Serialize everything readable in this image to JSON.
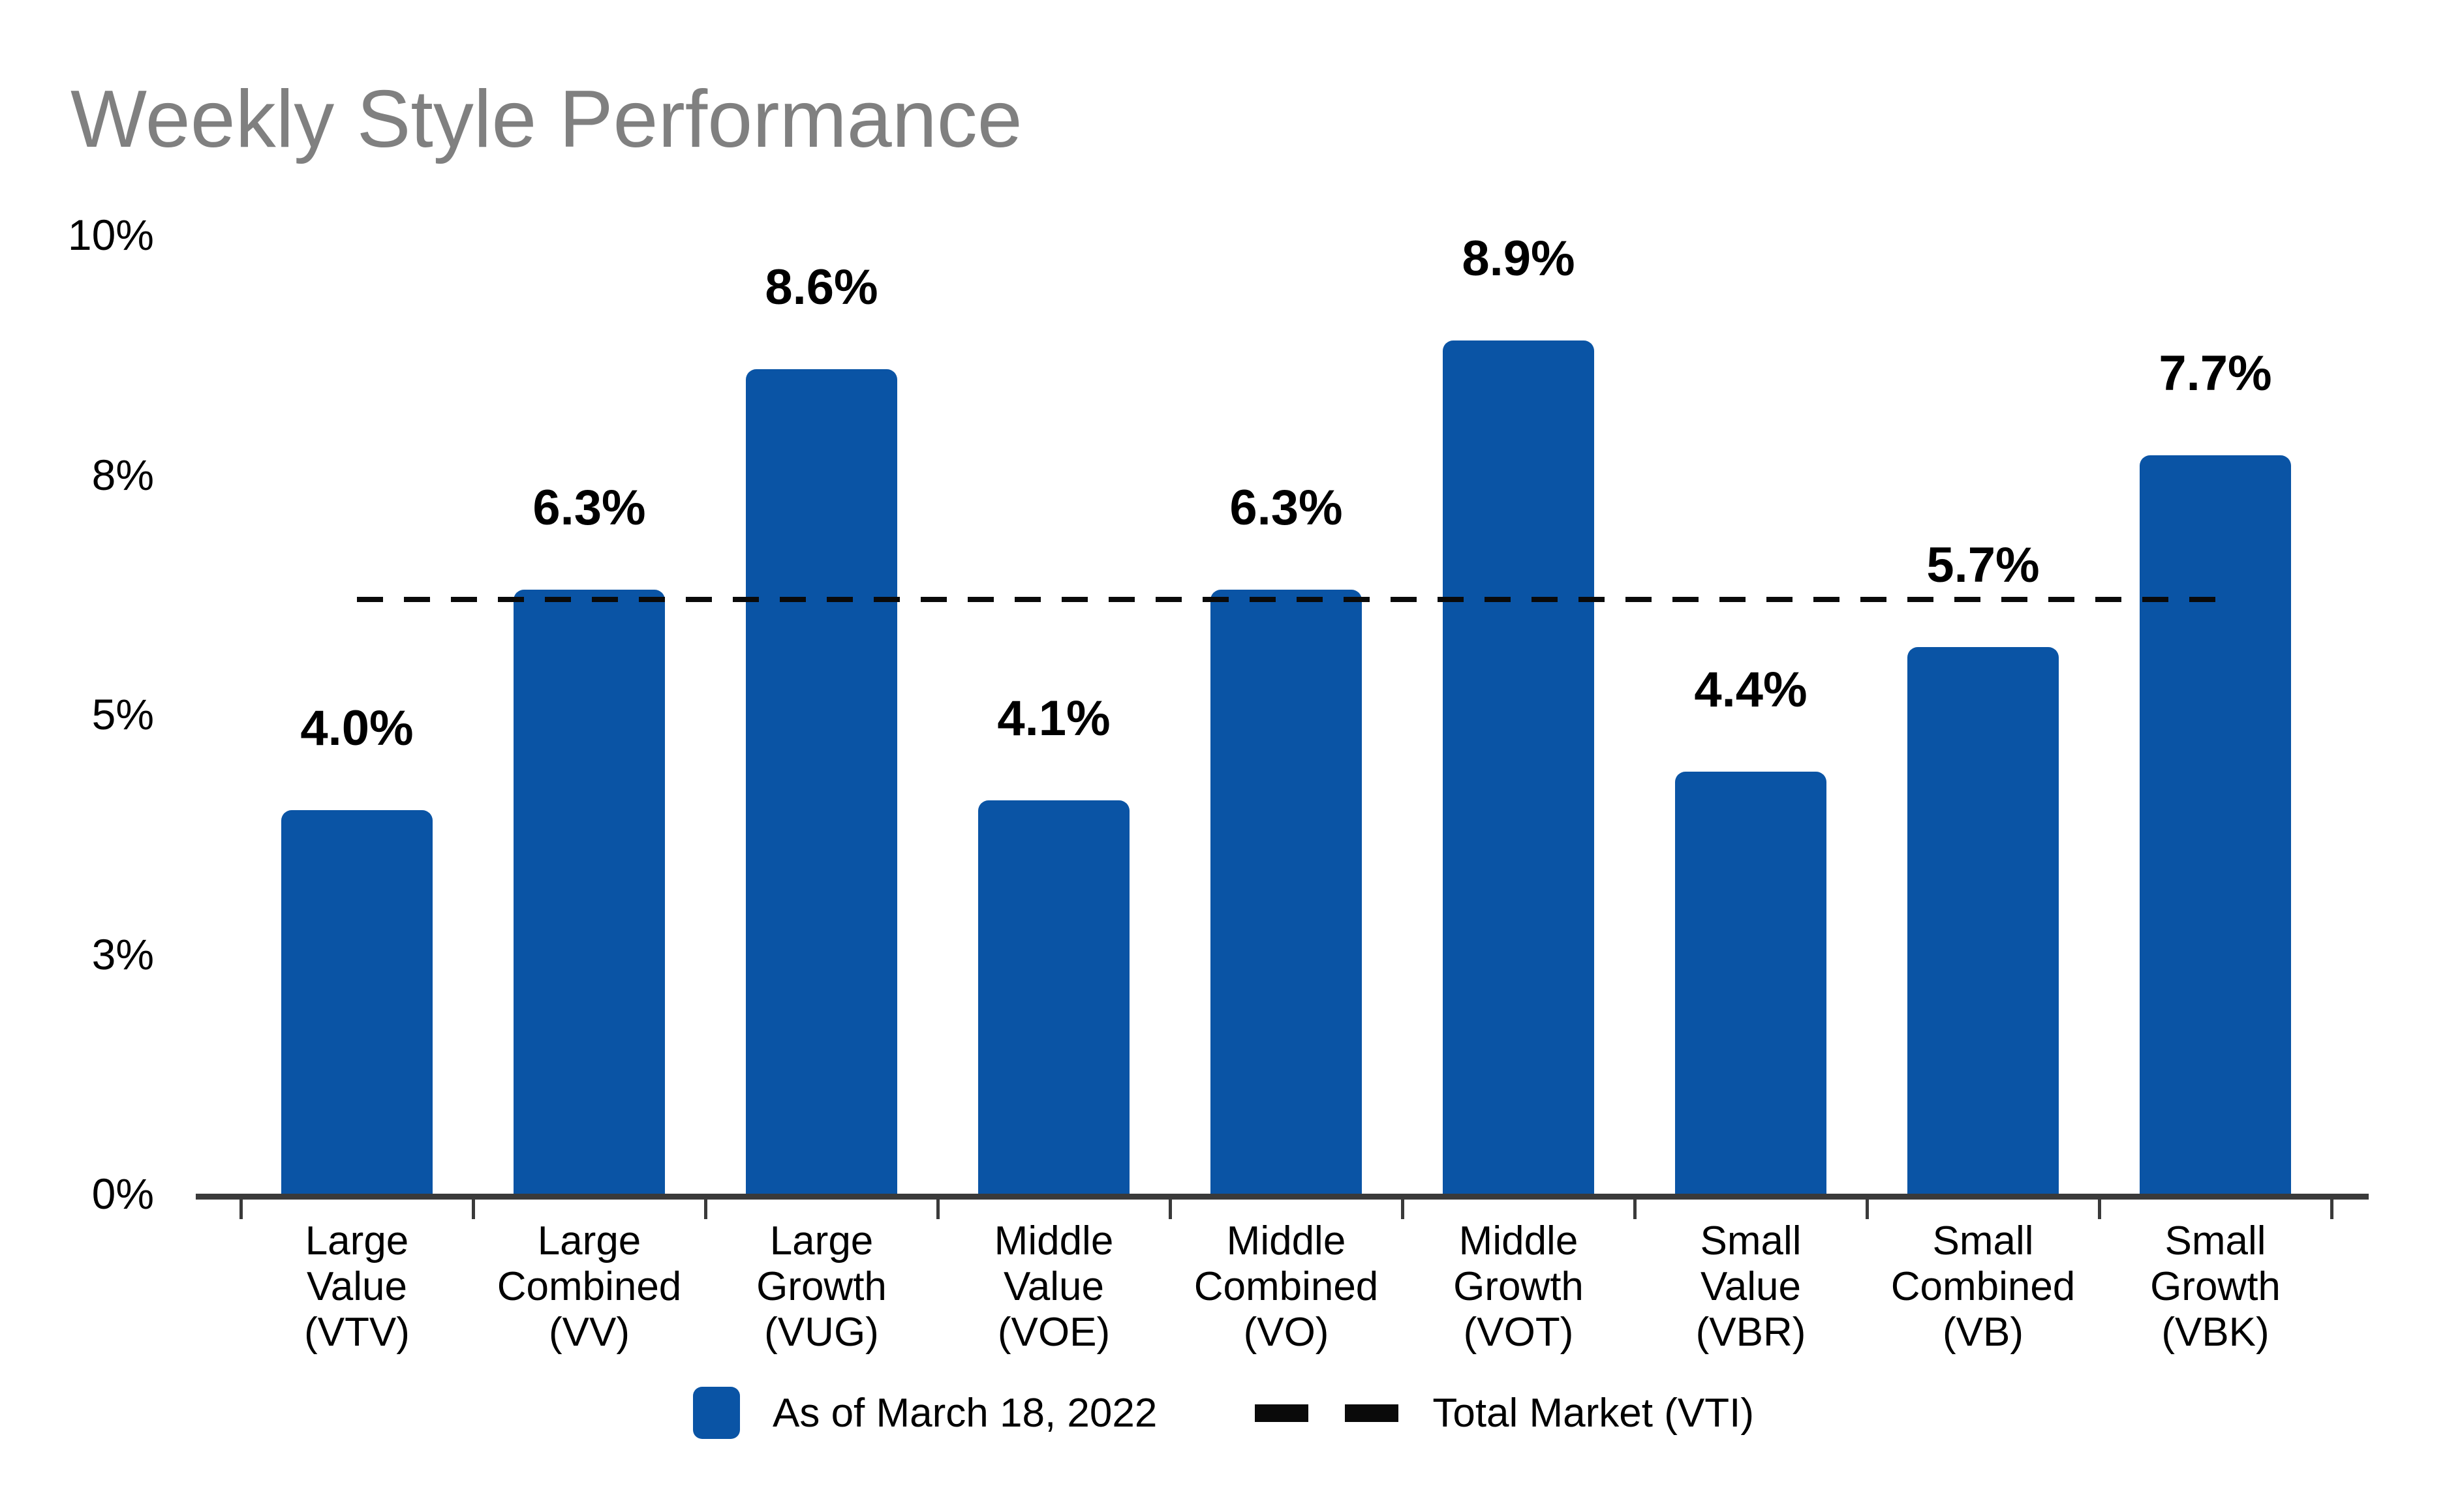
{
  "title": "Weekly Style Performance",
  "colors": {
    "bar_blue": "#0A54A5",
    "title_gray": "#808080",
    "axis_gray": "#3A3A3A",
    "text_black": "#000000",
    "reference_dash_black": "#0A0A0A"
  },
  "legend": {
    "as_of_label": "As of March 18, 2022",
    "total_market_label": "Total Market (VTI)"
  },
  "chart_data": {
    "type": "bar",
    "title": "Weekly Style Performance",
    "categories": [
      "Large Value (VTV)",
      "Large Combined (VV)",
      "Large Growth (VUG)",
      "Middle Value (VOE)",
      "Middle Combined (VO)",
      "Middle Growth (VOT)",
      "Small Value (VBR)",
      "Small Combined (VB)",
      "Small Growth (VBK)"
    ],
    "category_lines": [
      [
        "Large",
        "Value",
        "(VTV)"
      ],
      [
        "Large",
        "Combined",
        "(VV)"
      ],
      [
        "Large",
        "Growth",
        "(VUG)"
      ],
      [
        "Middle",
        "Value",
        "(VOE)"
      ],
      [
        "Middle",
        "Combined",
        "(VO)"
      ],
      [
        "Middle",
        "Growth",
        "(VOT)"
      ],
      [
        "Small",
        "Value",
        "(VBR)"
      ],
      [
        "Small",
        "Combined",
        "(VB)"
      ],
      [
        "Small",
        "Growth",
        "(VBK)"
      ]
    ],
    "values": [
      4.0,
      6.3,
      8.6,
      4.1,
      6.3,
      8.9,
      4.4,
      5.7,
      7.7
    ],
    "value_labels": [
      "4.0%",
      "6.3%",
      "8.6%",
      "4.1%",
      "6.3%",
      "8.9%",
      "4.4%",
      "5.7%",
      "7.7%"
    ],
    "series_name": "As of March 18, 2022",
    "xlabel": "",
    "ylabel": "",
    "ylim": [
      0,
      10
    ],
    "grid": false,
    "legend_position": "bottom",
    "y_ticks": [
      {
        "value": 0,
        "label": "0%"
      },
      {
        "value": 2.5,
        "label": "3%"
      },
      {
        "value": 5,
        "label": "5%"
      },
      {
        "value": 7.5,
        "label": "8%"
      },
      {
        "value": 10,
        "label": "10%"
      }
    ],
    "reference_line": {
      "label": "Total Market (VTI)",
      "value": 6.2,
      "style": "dashed"
    }
  }
}
